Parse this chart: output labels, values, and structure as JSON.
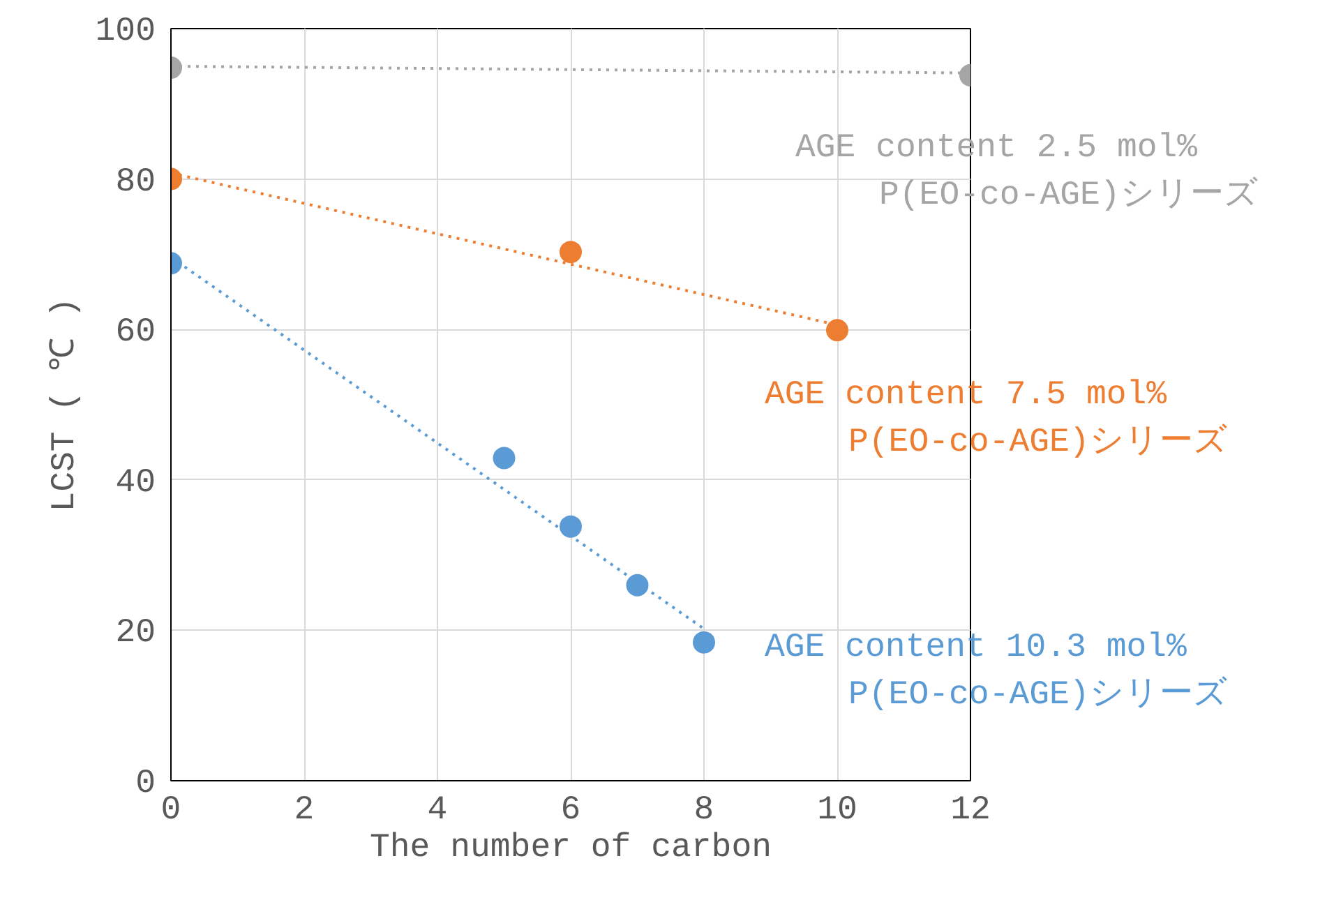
{
  "chart_data": {
    "type": "scatter",
    "xlabel": "The number of carbon",
    "ylabel": "LCST ( ℃ )",
    "xlim": [
      0,
      12
    ],
    "xticks": [
      0,
      2,
      4,
      6,
      8,
      10,
      12
    ],
    "ylim": [
      0,
      100
    ],
    "yticks": [
      0,
      20,
      40,
      60,
      80,
      100
    ],
    "grid": true,
    "marker": "circle",
    "series": [
      {
        "name": "AGE content 2.5 mol%\nP(EO-co-AGE)シリーズ",
        "color": "#a5a5a5",
        "x": [
          0,
          12
        ],
        "values": [
          94.8,
          93.8
        ]
      },
      {
        "type": "line",
        "line_style": "dotted",
        "marker": "none",
        "color": "#a5a5a5",
        "x": [
          0,
          12
        ],
        "values": [
          95.0,
          94.1
        ]
      },
      {
        "name": "AGE content 7.5 mol%\nP(EO-co-AGE)シリーズ",
        "color": "#ed7d31",
        "x": [
          0,
          6,
          10
        ],
        "values": [
          80.0,
          70.3,
          59.9
        ]
      },
      {
        "type": "line",
        "line_style": "dotted",
        "marker": "none",
        "color": "#ed7d31",
        "x": [
          0,
          10
        ],
        "values": [
          80.8,
          60.6
        ]
      },
      {
        "name": "AGE content 10.3 mol%\nP(EO-co-AGE)シリーズ",
        "color": "#5b9bd5",
        "x": [
          0,
          5,
          6,
          7,
          8
        ],
        "values": [
          68.8,
          42.9,
          33.8,
          26.0,
          18.4
        ]
      },
      {
        "type": "line",
        "line_style": "dotted",
        "marker": "none",
        "color": "#5b9bd5",
        "x": [
          0,
          8
        ],
        "values": [
          69.6,
          20.2
        ]
      }
    ]
  }
}
